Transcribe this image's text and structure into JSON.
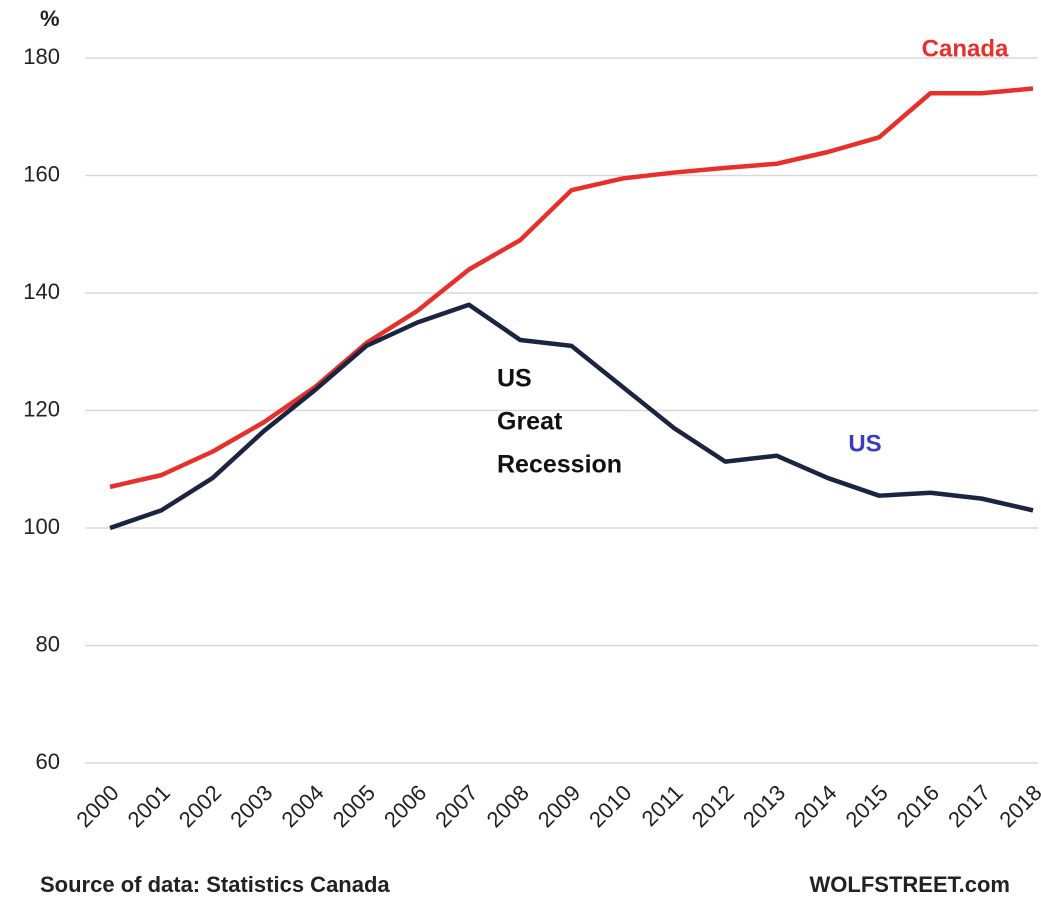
{
  "chart_data": {
    "type": "line",
    "y_label": "%",
    "categories": [
      "2000",
      "2001",
      "2002",
      "2003",
      "2004",
      "2005",
      "2006",
      "2007",
      "2008",
      "2009",
      "2010",
      "2011",
      "2012",
      "2013",
      "2014",
      "2015",
      "2016",
      "2017",
      "2018"
    ],
    "series": [
      {
        "name": "Canada",
        "color": "#e8302a",
        "values": [
          107,
          109,
          113,
          118,
          124,
          131.5,
          137,
          144,
          149,
          157.5,
          159.5,
          160.5,
          161.3,
          162,
          164,
          166.5,
          174,
          174,
          174.8
        ]
      },
      {
        "name": "US",
        "color": "#1b2541",
        "label_color": "#3b3bc4",
        "values": [
          100,
          103,
          108.5,
          116.5,
          123.5,
          131,
          135,
          138,
          132,
          131,
          124,
          117,
          111.3,
          112.3,
          108.5,
          105.5,
          106,
          105,
          103
        ]
      }
    ],
    "annotation_lines": [
      "US",
      "Great",
      "Recession"
    ],
    "source": "Source of data: Statistics Canada",
    "credit": "WOLFSTREET.com",
    "ylim": [
      60,
      180
    ],
    "yticks": [
      60,
      80,
      100,
      120,
      140,
      160,
      180
    ],
    "grid": true
  }
}
